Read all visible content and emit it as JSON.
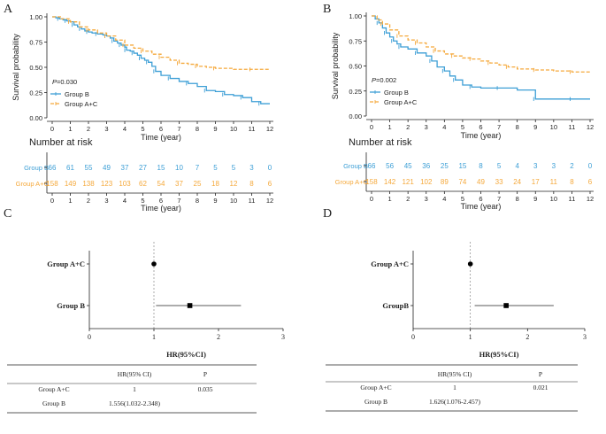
{
  "colors": {
    "group_b": "#3d9fd6",
    "group_ac": "#f5a93c",
    "axis": "#222222",
    "ref_line": "#888888"
  },
  "chart_data": [
    {
      "panel": "A",
      "type": "line",
      "subtype": "kaplan-meier",
      "ylabel": "Survival probability",
      "xlabel": "Time (year)",
      "xlim": [
        0,
        12
      ],
      "ylim": [
        0,
        1
      ],
      "xticks": [
        "0",
        "1",
        "2",
        "3",
        "4",
        "5",
        "6",
        "7",
        "8",
        "9",
        "10",
        "11",
        "12"
      ],
      "yticks": [
        "0.00",
        "0.25",
        "0.50",
        "0.75",
        "1.00"
      ],
      "pvalue_prefix": "P",
      "pvalue_text": "=0.030",
      "legend": [
        "Group B",
        "Group A+C"
      ],
      "series": [
        {
          "name": "Group B",
          "style": "solid",
          "x": [
            0,
            0.2,
            0.4,
            0.6,
            0.8,
            1.0,
            1.2,
            1.4,
            1.6,
            1.8,
            2.0,
            2.2,
            2.5,
            2.8,
            3.0,
            3.2,
            3.4,
            3.6,
            3.8,
            4.0,
            4.1,
            4.3,
            4.5,
            4.7,
            4.9,
            5.1,
            5.3,
            5.5,
            5.7,
            6.0,
            6.5,
            7.0,
            7.5,
            8.0,
            8.5,
            9.0,
            9.5,
            10.0,
            10.5,
            11.0,
            11.5,
            12.0
          ],
          "y": [
            1.0,
            0.99,
            0.98,
            0.97,
            0.96,
            0.95,
            0.92,
            0.9,
            0.88,
            0.86,
            0.85,
            0.84,
            0.83,
            0.82,
            0.81,
            0.79,
            0.76,
            0.74,
            0.72,
            0.7,
            0.67,
            0.66,
            0.64,
            0.62,
            0.59,
            0.57,
            0.55,
            0.51,
            0.46,
            0.42,
            0.39,
            0.36,
            0.34,
            0.31,
            0.27,
            0.26,
            0.23,
            0.22,
            0.2,
            0.16,
            0.14,
            0.14
          ]
        },
        {
          "name": "Group A+C",
          "style": "dashed",
          "x": [
            0,
            0.5,
            1.0,
            1.5,
            2.0,
            2.5,
            3.0,
            3.5,
            4.0,
            4.5,
            5.0,
            5.5,
            6.0,
            6.5,
            7.0,
            7.5,
            8.0,
            8.5,
            9.0,
            10.0,
            11.0,
            12.0
          ],
          "y": [
            1.0,
            0.98,
            0.95,
            0.9,
            0.87,
            0.84,
            0.81,
            0.77,
            0.72,
            0.69,
            0.66,
            0.63,
            0.6,
            0.57,
            0.54,
            0.53,
            0.51,
            0.5,
            0.49,
            0.48,
            0.48,
            0.48
          ]
        }
      ],
      "risk_table": {
        "title": "Number at risk",
        "time_points": [
          "0",
          "1",
          "2",
          "3",
          "4",
          "5",
          "6",
          "7",
          "8",
          "9",
          "10",
          "11",
          "12"
        ],
        "xlabel": "Time (year)",
        "rows": [
          {
            "group": "Group B",
            "values": [
              "66",
              "61",
              "55",
              "49",
              "37",
              "27",
              "15",
              "10",
              "7",
              "5",
              "5",
              "3",
              "0"
            ]
          },
          {
            "group": "Group A+C",
            "values": [
              "158",
              "149",
              "138",
              "123",
              "103",
              "62",
              "54",
              "37",
              "25",
              "18",
              "12",
              "8",
              "6"
            ]
          }
        ]
      }
    },
    {
      "panel": "B",
      "type": "line",
      "subtype": "kaplan-meier",
      "ylabel": "Survival probability",
      "xlabel": "Time (year)",
      "xlim": [
        0,
        12
      ],
      "ylim": [
        0,
        1
      ],
      "xticks": [
        "0",
        "1",
        "2",
        "3",
        "4",
        "5",
        "6",
        "7",
        "8",
        "9",
        "10",
        "11",
        "12"
      ],
      "yticks": [
        "0.00",
        "0.25",
        "0.50",
        "0.75",
        "1.00"
      ],
      "pvalue_prefix": "P",
      "pvalue_text": "=0.002",
      "legend": [
        "Group B",
        "Group A+C"
      ],
      "series": [
        {
          "name": "Group B",
          "style": "solid",
          "x": [
            0,
            0.2,
            0.4,
            0.6,
            0.8,
            1.0,
            1.2,
            1.4,
            1.6,
            2.0,
            2.5,
            3.0,
            3.3,
            3.6,
            4.0,
            4.3,
            4.6,
            5.0,
            5.5,
            6.0,
            7.0,
            8.0,
            9.0,
            10.0,
            11.0,
            12.0
          ],
          "y": [
            1.0,
            0.97,
            0.93,
            0.88,
            0.83,
            0.79,
            0.75,
            0.72,
            0.69,
            0.67,
            0.63,
            0.6,
            0.55,
            0.49,
            0.45,
            0.4,
            0.36,
            0.31,
            0.29,
            0.28,
            0.28,
            0.26,
            0.17,
            0.17,
            0.17,
            0.17
          ]
        },
        {
          "name": "Group A+C",
          "style": "dashed",
          "x": [
            0,
            0.3,
            0.6,
            1.0,
            1.5,
            2.0,
            2.5,
            3.0,
            3.5,
            4.0,
            4.5,
            5.0,
            5.5,
            6.0,
            6.5,
            7.0,
            7.5,
            8.0,
            9.0,
            10.0,
            11.0,
            12.0
          ],
          "y": [
            1.0,
            0.96,
            0.92,
            0.86,
            0.8,
            0.76,
            0.73,
            0.69,
            0.65,
            0.62,
            0.6,
            0.58,
            0.57,
            0.55,
            0.53,
            0.51,
            0.49,
            0.47,
            0.46,
            0.45,
            0.44,
            0.44
          ]
        }
      ],
      "risk_table": {
        "title": "Number at risk",
        "time_points": [
          "0",
          "1",
          "2",
          "3",
          "4",
          "5",
          "6",
          "7",
          "8",
          "9",
          "10",
          "11",
          "12"
        ],
        "xlabel": "Time (year)",
        "rows": [
          {
            "group": "Group B",
            "values": [
              "66",
              "56",
              "45",
              "36",
              "25",
              "15",
              "8",
              "5",
              "4",
              "3",
              "3",
              "2",
              "0"
            ]
          },
          {
            "group": "Group A+C",
            "values": [
              "158",
              "142",
              "121",
              "102",
              "89",
              "74",
              "49",
              "33",
              "24",
              "17",
              "11",
              "8",
              "6"
            ]
          }
        ]
      }
    },
    {
      "panel": "C",
      "type": "forest",
      "xlabel": "HR(95%CI)",
      "xlim": [
        0,
        3
      ],
      "xticks": [
        "0",
        "1",
        "2",
        "3"
      ],
      "reference": 1,
      "rows": [
        {
          "label": "Group A+C",
          "hr": 1.0,
          "lo": 1.0,
          "hi": 1.0,
          "marker": "circle"
        },
        {
          "label": "Group B",
          "hr": 1.556,
          "lo": 1.032,
          "hi": 2.348,
          "marker": "square"
        }
      ],
      "table": {
        "headers": [
          "",
          "HR(95% CI)",
          "P"
        ],
        "rows": [
          [
            "Group A+C",
            "1",
            "0.035"
          ],
          [
            "Group B",
            "1.556(1.032-2.348)",
            ""
          ]
        ]
      }
    },
    {
      "panel": "D",
      "type": "forest",
      "xlabel": "HR(95%CI)",
      "xlim": [
        0,
        3
      ],
      "xticks": [
        "0",
        "1",
        "2",
        "3"
      ],
      "reference": 1,
      "rows": [
        {
          "label": "Group A+C",
          "hr": 1.0,
          "lo": 1.0,
          "hi": 1.0,
          "marker": "circle"
        },
        {
          "label": "GroupB",
          "hr": 1.626,
          "lo": 1.076,
          "hi": 2.457,
          "marker": "square"
        }
      ],
      "table": {
        "headers": [
          "",
          "HR(95% CI)",
          "P"
        ],
        "rows": [
          [
            "Group A+C",
            "1",
            "0.021"
          ],
          [
            "Group B",
            "1.626(1.076-2.457)",
            ""
          ]
        ]
      }
    }
  ]
}
